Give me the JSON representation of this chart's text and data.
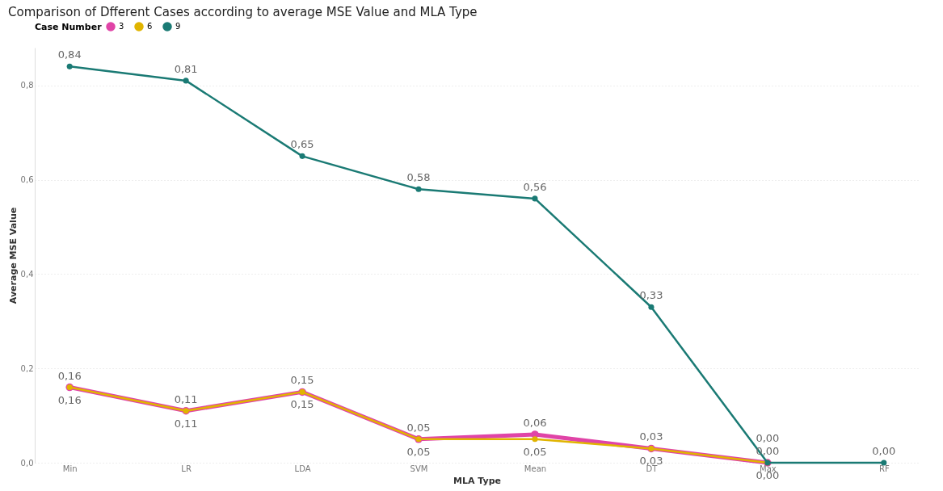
{
  "chart_data": {
    "type": "line",
    "title": "Comparison of Dfferent Cases according to average MSE Value and MLA Type",
    "xlabel": "MLA Type",
    "ylabel": "Average MSE Value",
    "legend_title": "Case Number",
    "categories": [
      "Min",
      "LR",
      "LDA",
      "SVM",
      "Mean",
      "DT",
      "Max",
      "RF"
    ],
    "series": [
      {
        "name": "3",
        "color": "#e044a7",
        "values": [
          0.16,
          0.11,
          0.15,
          0.05,
          0.06,
          0.03,
          0.0,
          null
        ],
        "value_labels": [
          "0,16",
          "0,11",
          "0,15",
          "0,05",
          "0,06",
          "0,03",
          "0,00",
          null
        ]
      },
      {
        "name": "6",
        "color": "#e0b400",
        "values": [
          0.16,
          0.11,
          0.15,
          0.05,
          0.05,
          0.03,
          0.0,
          null
        ],
        "value_labels": [
          "0,16",
          "0,11",
          "0,15",
          "0,05",
          "0,05",
          "0,03",
          "0,00",
          null
        ]
      },
      {
        "name": "9",
        "color": "#1a7a74",
        "values": [
          0.84,
          0.81,
          0.65,
          0.58,
          0.56,
          0.33,
          0.0,
          0.0
        ],
        "value_labels": [
          "0,84",
          "0,81",
          "0,65",
          "0,58",
          "0,56",
          "0,33",
          "0,00",
          "0,00"
        ]
      }
    ],
    "ylim": [
      0,
      0.88
    ],
    "yticks": [
      {
        "value": 0,
        "label": "0,0"
      },
      {
        "value": 0.2,
        "label": "0,2"
      },
      {
        "value": 0.4,
        "label": "0,4"
      },
      {
        "value": 0.6,
        "label": "0,6"
      },
      {
        "value": 0.8,
        "label": "0,8"
      }
    ],
    "grid": "y",
    "legend": "top left",
    "marker": "circle",
    "line_style": "solid"
  }
}
